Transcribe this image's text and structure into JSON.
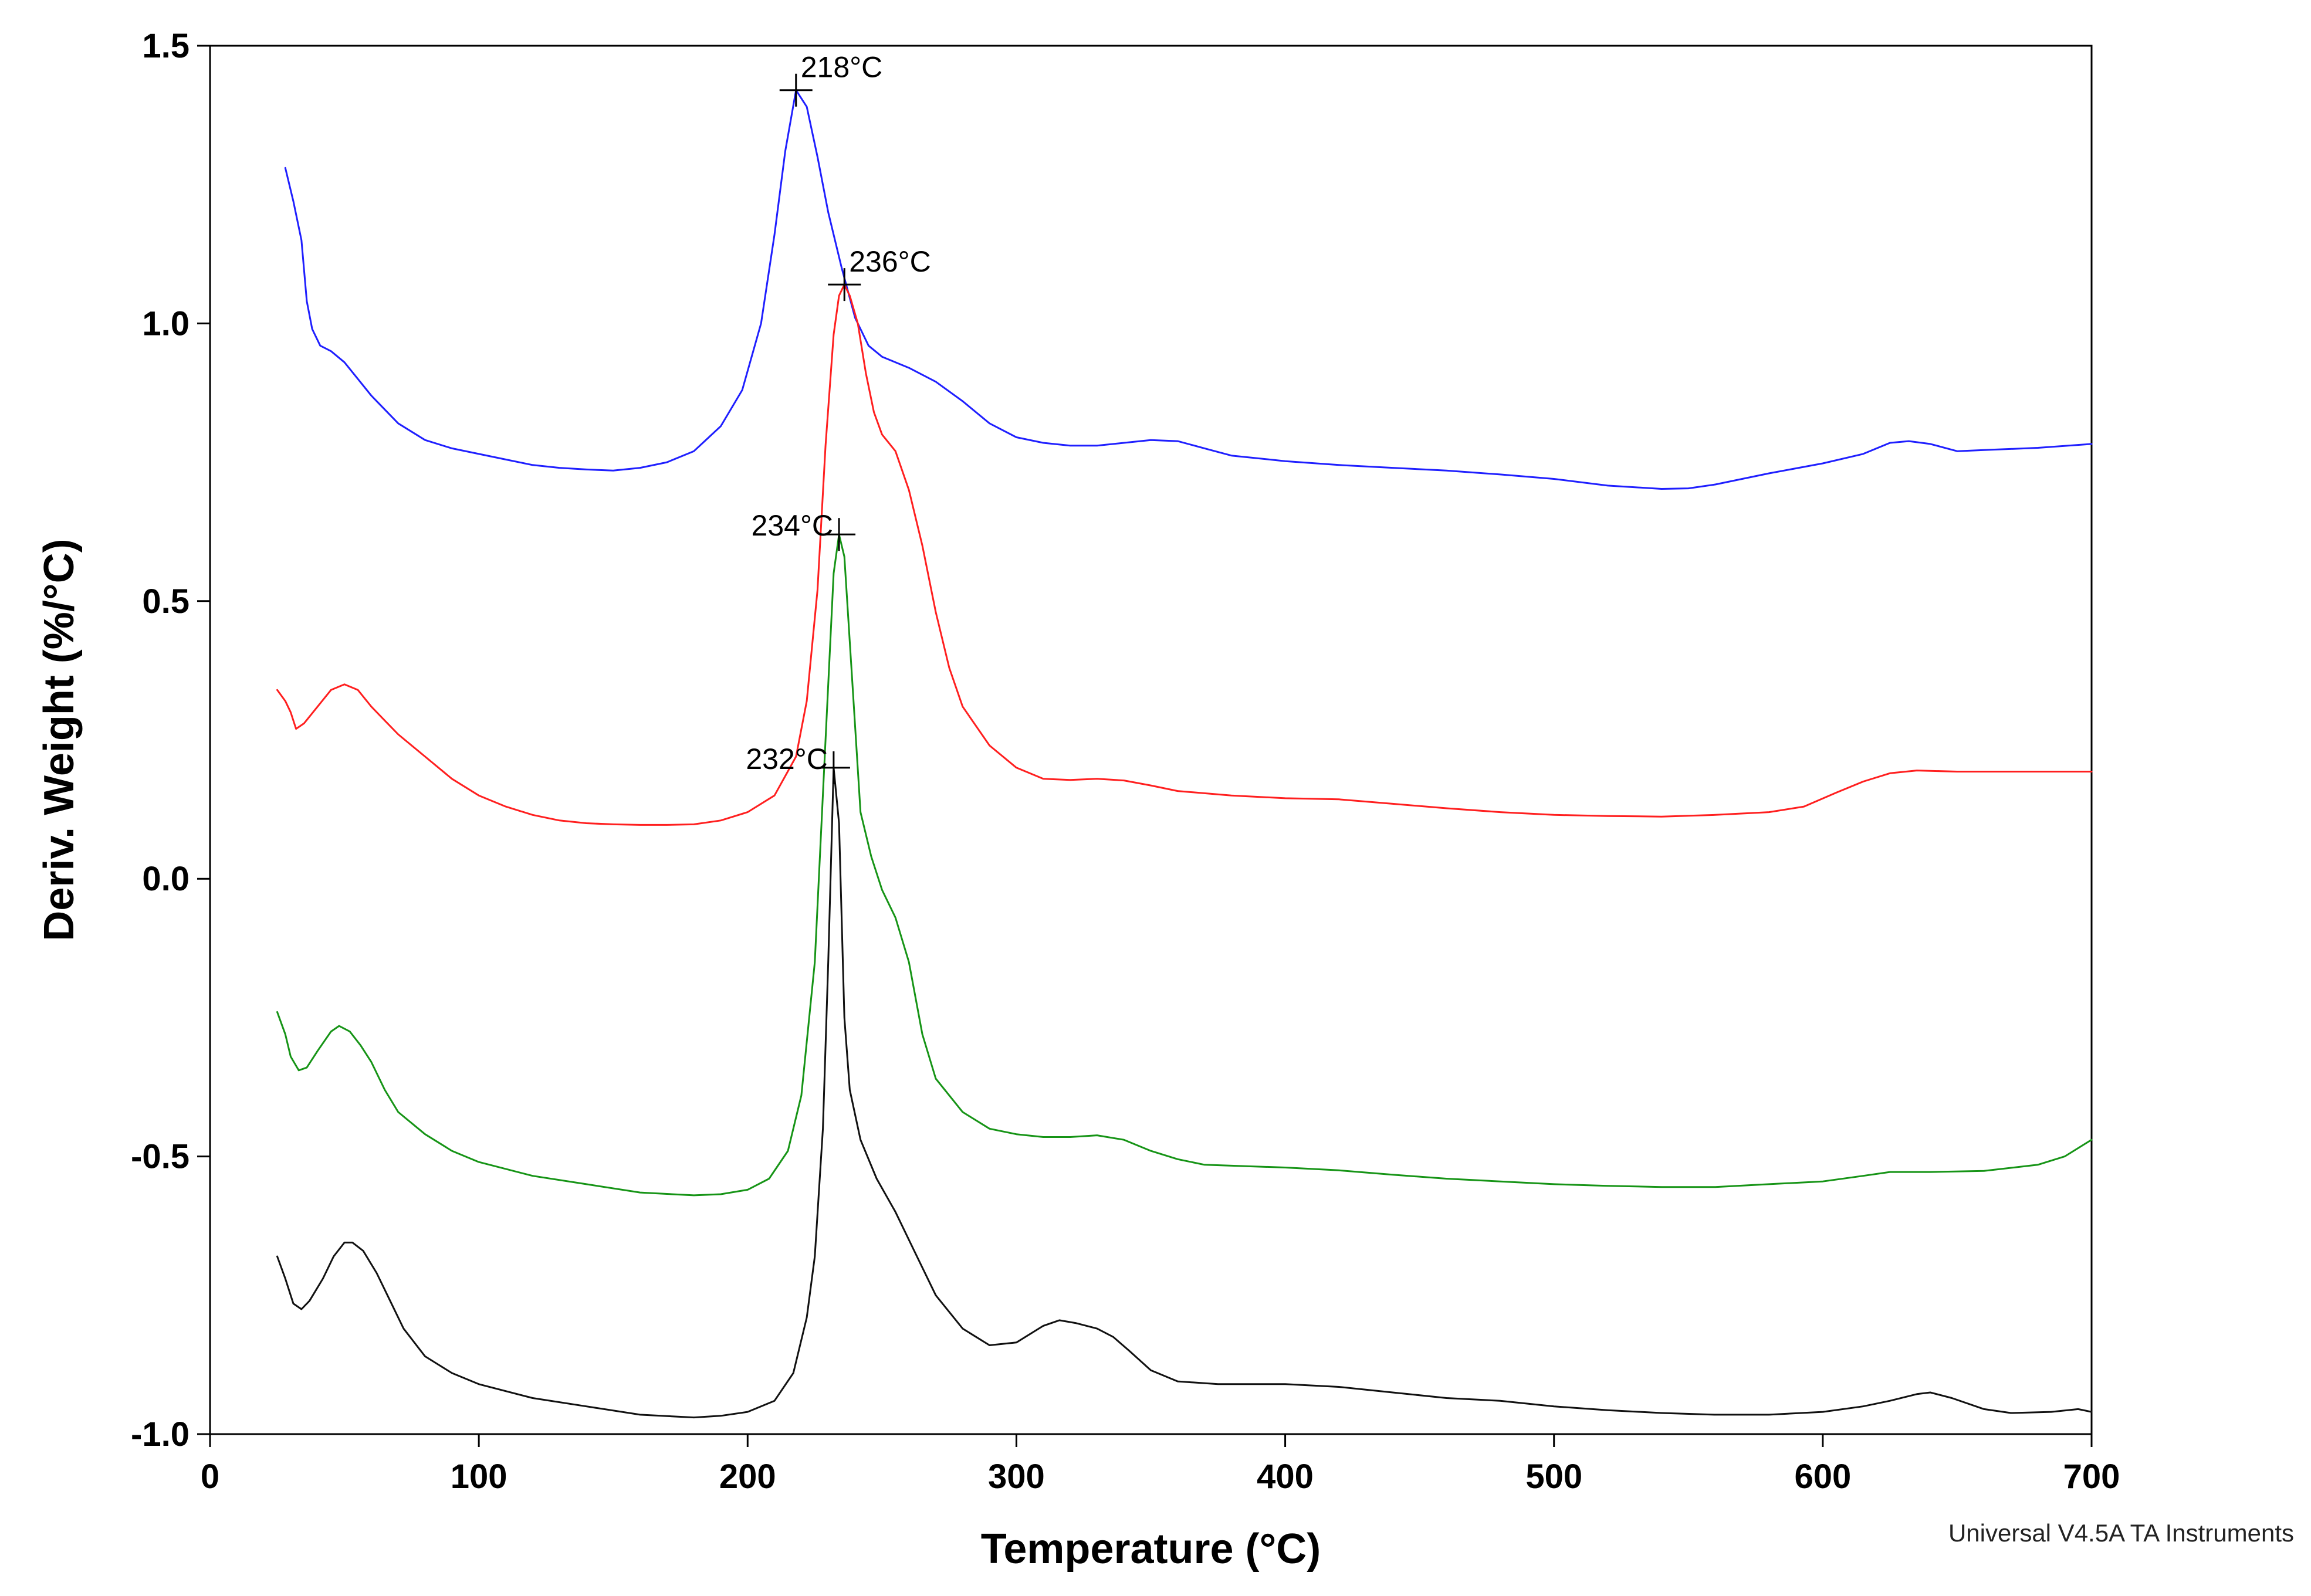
{
  "chart_data": {
    "type": "line",
    "title": "",
    "xlabel": "Temperature (°C)",
    "ylabel": "Deriv. Weight (%/°C)",
    "xlim": [
      0,
      700
    ],
    "ylim": [
      -1.0,
      1.5
    ],
    "x_ticks": [
      0,
      100,
      200,
      300,
      400,
      500,
      600,
      700
    ],
    "x_tick_labels": [
      "0",
      "100",
      "200",
      "300",
      "400",
      "500",
      "600",
      "700"
    ],
    "y_ticks": [
      -1.0,
      -0.5,
      0.0,
      0.5,
      1.0,
      1.5
    ],
    "y_tick_labels": [
      "-1.0",
      "-0.5",
      "0.0",
      "0.5",
      "1.0",
      "1.5"
    ],
    "grid": false,
    "footer": "Universal V4.5A TA Instruments",
    "series": [
      {
        "name": "blue",
        "color": "#1f1fff",
        "peak": {
          "x": 218,
          "y": 1.42,
          "label": "218°C",
          "label_side": "right"
        },
        "points": [
          [
            28,
            1.28
          ],
          [
            31,
            1.22
          ],
          [
            34,
            1.15
          ],
          [
            36,
            1.04
          ],
          [
            38,
            0.99
          ],
          [
            41,
            0.96
          ],
          [
            45,
            0.95
          ],
          [
            50,
            0.93
          ],
          [
            55,
            0.9
          ],
          [
            60,
            0.87
          ],
          [
            70,
            0.82
          ],
          [
            80,
            0.79
          ],
          [
            90,
            0.775
          ],
          [
            100,
            0.765
          ],
          [
            110,
            0.755
          ],
          [
            120,
            0.745
          ],
          [
            130,
            0.74
          ],
          [
            140,
            0.737
          ],
          [
            150,
            0.735
          ],
          [
            160,
            0.74
          ],
          [
            170,
            0.75
          ],
          [
            180,
            0.77
          ],
          [
            190,
            0.815
          ],
          [
            198,
            0.88
          ],
          [
            205,
            1.0
          ],
          [
            210,
            1.16
          ],
          [
            214,
            1.31
          ],
          [
            218,
            1.42
          ],
          [
            222,
            1.39
          ],
          [
            226,
            1.3
          ],
          [
            230,
            1.2
          ],
          [
            235,
            1.1
          ],
          [
            240,
            1.01
          ],
          [
            245,
            0.96
          ],
          [
            250,
            0.94
          ],
          [
            260,
            0.92
          ],
          [
            270,
            0.895
          ],
          [
            280,
            0.86
          ],
          [
            290,
            0.82
          ],
          [
            300,
            0.795
          ],
          [
            310,
            0.785
          ],
          [
            320,
            0.78
          ],
          [
            330,
            0.78
          ],
          [
            340,
            0.785
          ],
          [
            350,
            0.79
          ],
          [
            360,
            0.788
          ],
          [
            370,
            0.775
          ],
          [
            380,
            0.762
          ],
          [
            400,
            0.752
          ],
          [
            420,
            0.745
          ],
          [
            440,
            0.74
          ],
          [
            460,
            0.735
          ],
          [
            480,
            0.728
          ],
          [
            500,
            0.72
          ],
          [
            520,
            0.708
          ],
          [
            540,
            0.702
          ],
          [
            550,
            0.703
          ],
          [
            560,
            0.71
          ],
          [
            570,
            0.72
          ],
          [
            580,
            0.73
          ],
          [
            600,
            0.748
          ],
          [
            615,
            0.765
          ],
          [
            625,
            0.785
          ],
          [
            632,
            0.788
          ],
          [
            640,
            0.783
          ],
          [
            650,
            0.77
          ],
          [
            660,
            0.772
          ],
          [
            680,
            0.776
          ],
          [
            700,
            0.783
          ]
        ]
      },
      {
        "name": "red",
        "color": "#ff1f1f",
        "peak": {
          "x": 236,
          "y": 1.07,
          "label": "236°C",
          "label_side": "right"
        },
        "points": [
          [
            25,
            0.34
          ],
          [
            28,
            0.32
          ],
          [
            30,
            0.3
          ],
          [
            32,
            0.27
          ],
          [
            35,
            0.28
          ],
          [
            40,
            0.31
          ],
          [
            45,
            0.34
          ],
          [
            50,
            0.35
          ],
          [
            55,
            0.34
          ],
          [
            60,
            0.31
          ],
          [
            65,
            0.285
          ],
          [
            70,
            0.26
          ],
          [
            80,
            0.22
          ],
          [
            90,
            0.18
          ],
          [
            100,
            0.15
          ],
          [
            110,
            0.13
          ],
          [
            120,
            0.115
          ],
          [
            130,
            0.105
          ],
          [
            140,
            0.1
          ],
          [
            150,
            0.098
          ],
          [
            160,
            0.097
          ],
          [
            170,
            0.097
          ],
          [
            180,
            0.098
          ],
          [
            190,
            0.105
          ],
          [
            200,
            0.12
          ],
          [
            210,
            0.15
          ],
          [
            218,
            0.22
          ],
          [
            222,
            0.32
          ],
          [
            226,
            0.52
          ],
          [
            229,
            0.78
          ],
          [
            232,
            0.98
          ],
          [
            234,
            1.05
          ],
          [
            236,
            1.07
          ],
          [
            238,
            1.05
          ],
          [
            241,
            1.0
          ],
          [
            244,
            0.91
          ],
          [
            247,
            0.84
          ],
          [
            250,
            0.8
          ],
          [
            255,
            0.77
          ],
          [
            260,
            0.7
          ],
          [
            265,
            0.6
          ],
          [
            270,
            0.48
          ],
          [
            275,
            0.38
          ],
          [
            280,
            0.31
          ],
          [
            290,
            0.24
          ],
          [
            300,
            0.2
          ],
          [
            310,
            0.18
          ],
          [
            320,
            0.178
          ],
          [
            330,
            0.18
          ],
          [
            340,
            0.177
          ],
          [
            350,
            0.168
          ],
          [
            360,
            0.158
          ],
          [
            380,
            0.15
          ],
          [
            400,
            0.145
          ],
          [
            420,
            0.143
          ],
          [
            440,
            0.135
          ],
          [
            460,
            0.127
          ],
          [
            480,
            0.12
          ],
          [
            500,
            0.115
          ],
          [
            520,
            0.113
          ],
          [
            540,
            0.112
          ],
          [
            560,
            0.115
          ],
          [
            580,
            0.12
          ],
          [
            593,
            0.13
          ],
          [
            605,
            0.155
          ],
          [
            615,
            0.175
          ],
          [
            625,
            0.19
          ],
          [
            635,
            0.195
          ],
          [
            650,
            0.193
          ],
          [
            700,
            0.193
          ]
        ]
      },
      {
        "name": "green",
        "color": "#169416",
        "peak": {
          "x": 234,
          "y": 0.62,
          "label": "234°C",
          "label_side": "left"
        },
        "points": [
          [
            25,
            -0.24
          ],
          [
            28,
            -0.28
          ],
          [
            30,
            -0.32
          ],
          [
            33,
            -0.345
          ],
          [
            36,
            -0.34
          ],
          [
            40,
            -0.31
          ],
          [
            45,
            -0.275
          ],
          [
            48,
            -0.265
          ],
          [
            52,
            -0.275
          ],
          [
            56,
            -0.3
          ],
          [
            60,
            -0.33
          ],
          [
            65,
            -0.38
          ],
          [
            70,
            -0.42
          ],
          [
            80,
            -0.46
          ],
          [
            90,
            -0.49
          ],
          [
            100,
            -0.51
          ],
          [
            120,
            -0.535
          ],
          [
            140,
            -0.55
          ],
          [
            160,
            -0.565
          ],
          [
            180,
            -0.57
          ],
          [
            190,
            -0.568
          ],
          [
            200,
            -0.56
          ],
          [
            208,
            -0.54
          ],
          [
            215,
            -0.49
          ],
          [
            220,
            -0.39
          ],
          [
            225,
            -0.15
          ],
          [
            229,
            0.25
          ],
          [
            232,
            0.55
          ],
          [
            234,
            0.62
          ],
          [
            236,
            0.58
          ],
          [
            239,
            0.35
          ],
          [
            242,
            0.12
          ],
          [
            246,
            0.04
          ],
          [
            250,
            -0.02
          ],
          [
            255,
            -0.07
          ],
          [
            260,
            -0.15
          ],
          [
            265,
            -0.28
          ],
          [
            270,
            -0.36
          ],
          [
            280,
            -0.42
          ],
          [
            290,
            -0.45
          ],
          [
            300,
            -0.46
          ],
          [
            310,
            -0.465
          ],
          [
            320,
            -0.465
          ],
          [
            330,
            -0.462
          ],
          [
            340,
            -0.47
          ],
          [
            350,
            -0.49
          ],
          [
            360,
            -0.505
          ],
          [
            370,
            -0.515
          ],
          [
            400,
            -0.52
          ],
          [
            420,
            -0.525
          ],
          [
            440,
            -0.533
          ],
          [
            460,
            -0.54
          ],
          [
            480,
            -0.545
          ],
          [
            500,
            -0.55
          ],
          [
            520,
            -0.553
          ],
          [
            540,
            -0.555
          ],
          [
            560,
            -0.555
          ],
          [
            580,
            -0.55
          ],
          [
            600,
            -0.545
          ],
          [
            615,
            -0.535
          ],
          [
            625,
            -0.528
          ],
          [
            640,
            -0.528
          ],
          [
            660,
            -0.526
          ],
          [
            680,
            -0.515
          ],
          [
            690,
            -0.5
          ],
          [
            700,
            -0.47
          ]
        ]
      },
      {
        "name": "black",
        "color": "#111111",
        "peak": {
          "x": 232,
          "y": 0.2,
          "label": "232°C",
          "label_side": "left"
        },
        "points": [
          [
            25,
            -0.68
          ],
          [
            28,
            -0.72
          ],
          [
            31,
            -0.765
          ],
          [
            34,
            -0.775
          ],
          [
            37,
            -0.76
          ],
          [
            42,
            -0.72
          ],
          [
            46,
            -0.68
          ],
          [
            50,
            -0.655
          ],
          [
            53,
            -0.655
          ],
          [
            57,
            -0.67
          ],
          [
            62,
            -0.71
          ],
          [
            67,
            -0.76
          ],
          [
            72,
            -0.81
          ],
          [
            80,
            -0.86
          ],
          [
            90,
            -0.89
          ],
          [
            100,
            -0.91
          ],
          [
            120,
            -0.935
          ],
          [
            140,
            -0.95
          ],
          [
            160,
            -0.965
          ],
          [
            180,
            -0.97
          ],
          [
            190,
            -0.967
          ],
          [
            200,
            -0.96
          ],
          [
            210,
            -0.94
          ],
          [
            217,
            -0.89
          ],
          [
            222,
            -0.79
          ],
          [
            225,
            -0.68
          ],
          [
            228,
            -0.45
          ],
          [
            230,
            -0.15
          ],
          [
            232,
            0.2
          ],
          [
            234,
            0.1
          ],
          [
            236,
            -0.25
          ],
          [
            238,
            -0.38
          ],
          [
            242,
            -0.47
          ],
          [
            248,
            -0.54
          ],
          [
            255,
            -0.6
          ],
          [
            262,
            -0.67
          ],
          [
            270,
            -0.75
          ],
          [
            280,
            -0.81
          ],
          [
            290,
            -0.84
          ],
          [
            300,
            -0.835
          ],
          [
            310,
            -0.805
          ],
          [
            316,
            -0.795
          ],
          [
            322,
            -0.8
          ],
          [
            330,
            -0.81
          ],
          [
            336,
            -0.825
          ],
          [
            342,
            -0.85
          ],
          [
            350,
            -0.885
          ],
          [
            360,
            -0.905
          ],
          [
            375,
            -0.91
          ],
          [
            400,
            -0.91
          ],
          [
            420,
            -0.915
          ],
          [
            440,
            -0.925
          ],
          [
            460,
            -0.935
          ],
          [
            480,
            -0.94
          ],
          [
            500,
            -0.95
          ],
          [
            520,
            -0.957
          ],
          [
            540,
            -0.962
          ],
          [
            560,
            -0.965
          ],
          [
            580,
            -0.965
          ],
          [
            600,
            -0.96
          ],
          [
            615,
            -0.95
          ],
          [
            625,
            -0.94
          ],
          [
            635,
            -0.928
          ],
          [
            640,
            -0.925
          ],
          [
            648,
            -0.935
          ],
          [
            660,
            -0.955
          ],
          [
            670,
            -0.962
          ],
          [
            685,
            -0.96
          ],
          [
            695,
            -0.955
          ],
          [
            700,
            -0.96
          ]
        ]
      }
    ]
  }
}
